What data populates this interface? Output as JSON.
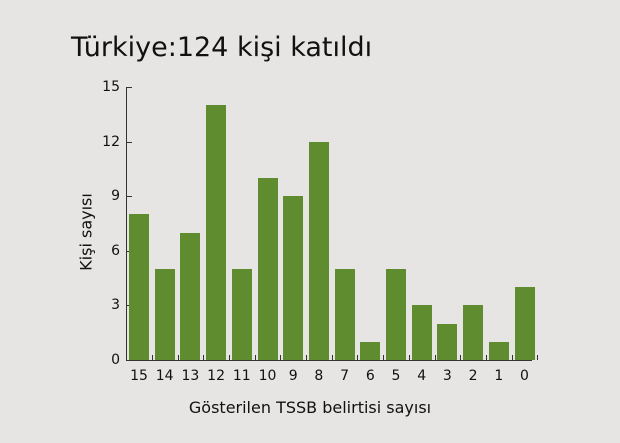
{
  "chart_data": {
    "type": "bar",
    "title": "Türkiye:124 kişi katıldı",
    "xlabel": "Gösterilen TSSB belirtisi sayısı",
    "ylabel": "Kişi sayısı",
    "categories": [
      "15",
      "14",
      "13",
      "12",
      "11",
      "10",
      "9",
      "8",
      "7",
      "6",
      "5",
      "4",
      "3",
      "2",
      "1",
      "0"
    ],
    "values": [
      8,
      5,
      7,
      14,
      5,
      10,
      9,
      12,
      5,
      1,
      5,
      3,
      2,
      3,
      1,
      4
    ],
    "ylim": [
      0,
      15
    ],
    "yticks": [
      0,
      3,
      6,
      9,
      12,
      15
    ],
    "grid": false,
    "legend": null,
    "colors": {
      "bar": "#5f8c2f",
      "background": "#e6e5e4",
      "axis": "#333333"
    }
  }
}
